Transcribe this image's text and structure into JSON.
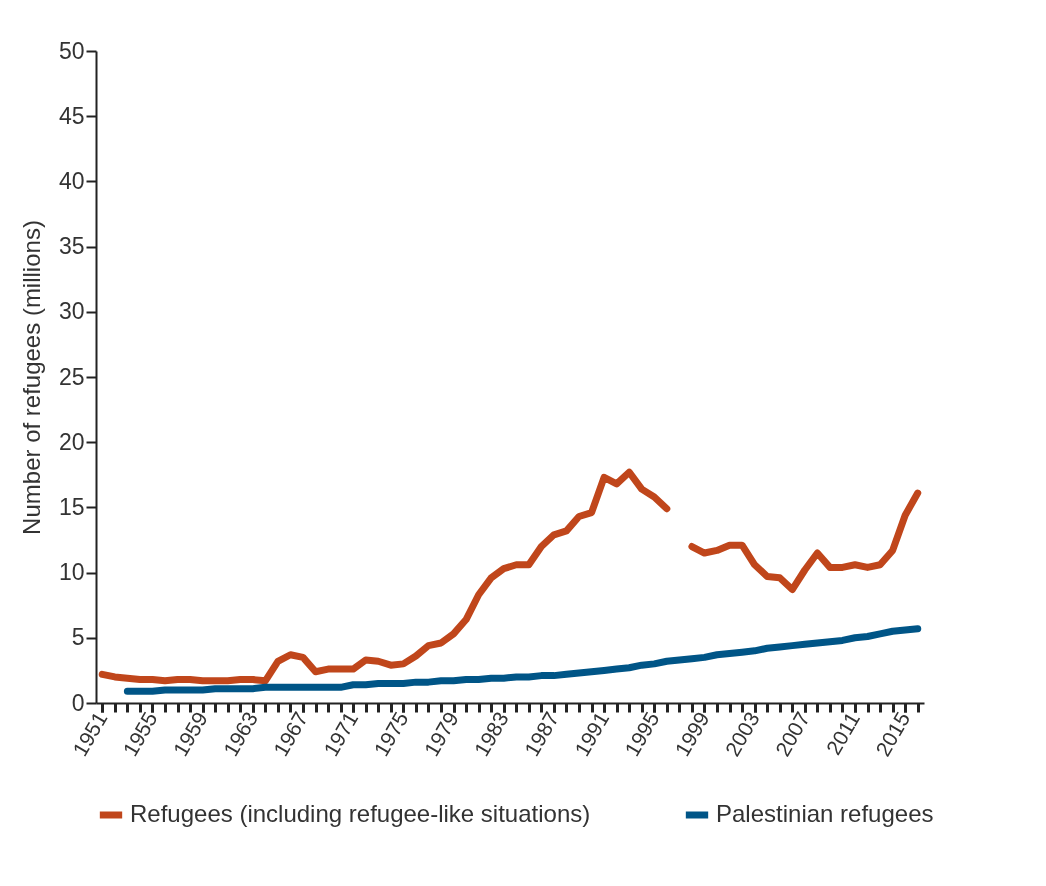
{
  "chart_data": {
    "type": "line",
    "ylabel": "Number of refugees (millions)",
    "legend": "bottom",
    "grid": false,
    "line_style": "solid",
    "x": [
      1951,
      1952,
      1953,
      1954,
      1955,
      1956,
      1957,
      1958,
      1959,
      1960,
      1961,
      1962,
      1963,
      1964,
      1965,
      1966,
      1967,
      1968,
      1969,
      1970,
      1971,
      1972,
      1973,
      1974,
      1975,
      1976,
      1977,
      1978,
      1979,
      1980,
      1981,
      1982,
      1983,
      1984,
      1985,
      1986,
      1987,
      1988,
      1989,
      1990,
      1991,
      1992,
      1993,
      1994,
      1995,
      1996,
      1997,
      1998,
      1999,
      2000,
      2001,
      2002,
      2003,
      2004,
      2005,
      2006,
      2007,
      2008,
      2009,
      2010,
      2011,
      2012,
      2013,
      2014,
      2015,
      2016
    ],
    "xlim": [
      1950.5,
      2016.5
    ],
    "xticks": [
      {
        "value": 1951,
        "label": "1951"
      },
      {
        "value": 1952,
        "label": null
      },
      {
        "value": 1953,
        "label": null
      },
      {
        "value": 1954,
        "label": null
      },
      {
        "value": 1955,
        "label": "1955"
      },
      {
        "value": 1956,
        "label": null
      },
      {
        "value": 1957,
        "label": null
      },
      {
        "value": 1958,
        "label": null
      },
      {
        "value": 1959,
        "label": "1959"
      },
      {
        "value": 1960,
        "label": null
      },
      {
        "value": 1961,
        "label": null
      },
      {
        "value": 1962,
        "label": null
      },
      {
        "value": 1963,
        "label": "1963"
      },
      {
        "value": 1964,
        "label": null
      },
      {
        "value": 1965,
        "label": null
      },
      {
        "value": 1966,
        "label": null
      },
      {
        "value": 1967,
        "label": "1967"
      },
      {
        "value": 1968,
        "label": null
      },
      {
        "value": 1969,
        "label": null
      },
      {
        "value": 1970,
        "label": null
      },
      {
        "value": 1971,
        "label": "1971"
      },
      {
        "value": 1972,
        "label": null
      },
      {
        "value": 1973,
        "label": null
      },
      {
        "value": 1974,
        "label": null
      },
      {
        "value": 1975,
        "label": "1975"
      },
      {
        "value": 1976,
        "label": null
      },
      {
        "value": 1977,
        "label": null
      },
      {
        "value": 1978,
        "label": null
      },
      {
        "value": 1979,
        "label": "1979"
      },
      {
        "value": 1980,
        "label": null
      },
      {
        "value": 1981,
        "label": null
      },
      {
        "value": 1982,
        "label": null
      },
      {
        "value": 1983,
        "label": "1983"
      },
      {
        "value": 1984,
        "label": null
      },
      {
        "value": 1985,
        "label": null
      },
      {
        "value": 1986,
        "label": null
      },
      {
        "value": 1987,
        "label": "1987"
      },
      {
        "value": 1988,
        "label": null
      },
      {
        "value": 1989,
        "label": null
      },
      {
        "value": 1990,
        "label": null
      },
      {
        "value": 1991,
        "label": "1991"
      },
      {
        "value": 1992,
        "label": null
      },
      {
        "value": 1993,
        "label": null
      },
      {
        "value": 1994,
        "label": null
      },
      {
        "value": 1995,
        "label": "1995"
      },
      {
        "value": 1996,
        "label": null
      },
      {
        "value": 1997,
        "label": null
      },
      {
        "value": 1998,
        "label": null
      },
      {
        "value": 1999,
        "label": "1999"
      },
      {
        "value": 2000,
        "label": null
      },
      {
        "value": 2001,
        "label": null
      },
      {
        "value": 2002,
        "label": null
      },
      {
        "value": 2003,
        "label": "2003"
      },
      {
        "value": 2004,
        "label": null
      },
      {
        "value": 2005,
        "label": null
      },
      {
        "value": 2006,
        "label": null
      },
      {
        "value": 2007,
        "label": "2007"
      },
      {
        "value": 2008,
        "label": null
      },
      {
        "value": 2009,
        "label": null
      },
      {
        "value": 2010,
        "label": null
      },
      {
        "value": 2011,
        "label": "2011"
      },
      {
        "value": 2012,
        "label": null
      },
      {
        "value": 2013,
        "label": null
      },
      {
        "value": 2014,
        "label": null
      },
      {
        "value": 2015,
        "label": "2015"
      },
      {
        "value": 2016,
        "label": null
      }
    ],
    "ylim": [
      0,
      50
    ],
    "yticks": [
      0,
      5,
      10,
      15,
      20,
      25,
      30,
      35,
      40,
      45,
      50
    ],
    "series": [
      {
        "name": "Refugees (including refugee-like situations)",
        "color": "#c0461b",
        "values": [
          2.2,
          2.0,
          1.9,
          1.8,
          1.8,
          1.7,
          1.8,
          1.8,
          1.7,
          1.7,
          1.7,
          1.8,
          1.8,
          1.7,
          3.2,
          3.7,
          3.5,
          2.4,
          2.6,
          2.6,
          2.6,
          3.3,
          3.2,
          2.9,
          3.0,
          3.6,
          4.4,
          4.6,
          5.3,
          6.4,
          8.3,
          9.6,
          10.3,
          10.6,
          10.6,
          12.0,
          12.9,
          13.2,
          14.3,
          14.6,
          17.3,
          16.8,
          17.7,
          16.4,
          15.8,
          14.9,
          null,
          12.0,
          11.5,
          11.7,
          12.1,
          12.1,
          10.6,
          9.7,
          9.6,
          8.7,
          10.2,
          11.5,
          10.4,
          10.4,
          10.6,
          10.4,
          10.6,
          11.7,
          14.4,
          16.1
        ]
      },
      {
        "name": "Palestinian refugees",
        "color": "#005587",
        "x": [
          1953,
          1954,
          1955,
          1956,
          1957,
          1958,
          1959,
          1960,
          1961,
          1962,
          1963,
          1964,
          1965,
          1966,
          1967,
          1968,
          1969,
          1970,
          1971,
          1972,
          1973,
          1974,
          1975,
          1976,
          1977,
          1978,
          1979,
          1980,
          1981,
          1982,
          1983,
          1984,
          1985,
          1986,
          1987,
          1988,
          1989,
          1990,
          1991,
          1992,
          1993,
          1994,
          1995,
          1996,
          1997,
          1998,
          1999,
          2000,
          2001,
          2002,
          2003,
          2004,
          2005,
          2006,
          2007,
          2008,
          2009,
          2010,
          2011,
          2012,
          2013,
          2014,
          2015,
          2016
        ],
        "values": [
          0.9,
          0.9,
          0.9,
          1.0,
          1.0,
          1.0,
          1.0,
          1.1,
          1.1,
          1.1,
          1.1,
          1.2,
          1.2,
          1.2,
          1.2,
          1.2,
          1.2,
          1.2,
          1.4,
          1.4,
          1.5,
          1.5,
          1.5,
          1.6,
          1.6,
          1.7,
          1.7,
          1.8,
          1.8,
          1.9,
          1.9,
          2.0,
          2.0,
          2.1,
          2.1,
          2.2,
          2.3,
          2.4,
          2.5,
          2.6,
          2.7,
          2.9,
          3.0,
          3.2,
          3.3,
          3.4,
          3.5,
          3.7,
          3.8,
          3.9,
          4.0,
          4.2,
          4.3,
          4.4,
          4.5,
          4.6,
          4.7,
          4.8,
          5.0,
          5.1,
          5.3,
          5.5,
          5.6,
          5.7
        ]
      }
    ]
  }
}
